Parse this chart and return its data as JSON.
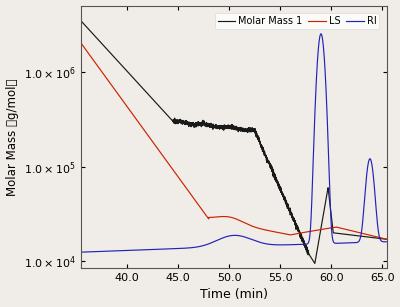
{
  "title": "",
  "xlabel": "Time (min)",
  "ylabel": "Molar Mass （g/mol）",
  "xlim": [
    35.5,
    65.5
  ],
  "ylim_log": [
    8500,
    5000000
  ],
  "legend_labels": [
    "Molar Mass 1",
    "LS",
    "RI"
  ],
  "line_colors": [
    "#1a1a1a",
    "#cc2200",
    "#2222bb"
  ],
  "background_color": "#f0ede8",
  "xticks": [
    40.0,
    45.0,
    50.0,
    55.0,
    60.0,
    65.0
  ],
  "yticks": [
    10000,
    100000,
    1000000
  ]
}
